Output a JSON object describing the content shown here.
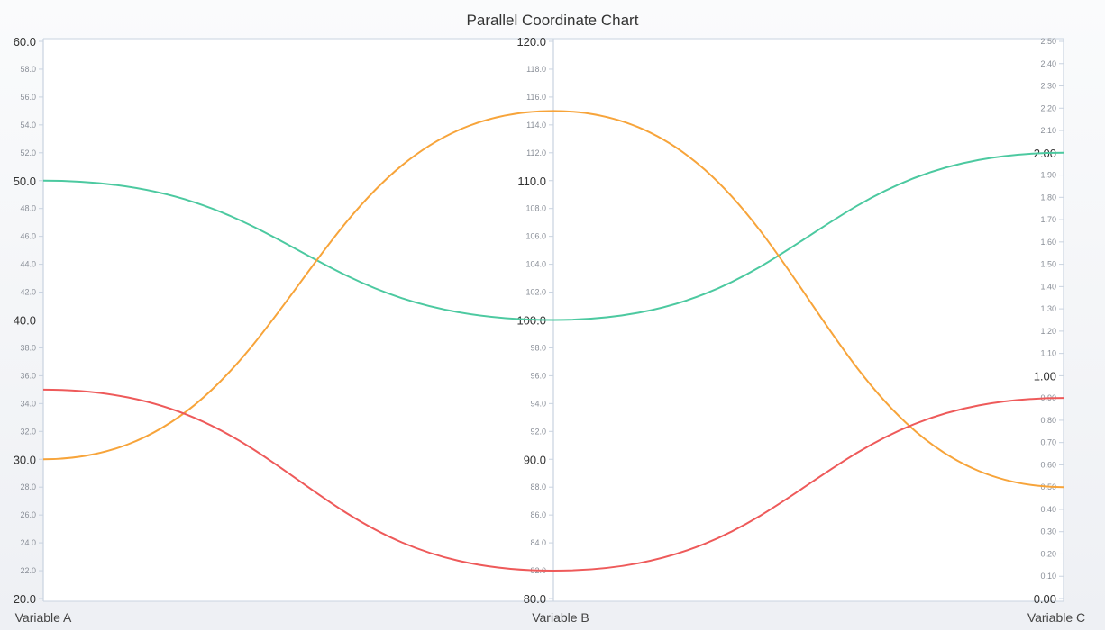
{
  "chart_data": {
    "type": "parallel-coordinates",
    "title": "Parallel Coordinate Chart",
    "axes": [
      {
        "name": "Variable A",
        "range": [
          20,
          60
        ],
        "tick_step": 2,
        "major_step": 10,
        "decimals": 1
      },
      {
        "name": "Variable B",
        "range": [
          80,
          120
        ],
        "tick_step": 2,
        "major_step": 10,
        "decimals": 1
      },
      {
        "name": "Variable C",
        "range": [
          0,
          2.5
        ],
        "tick_step": 0.1,
        "major_step": 1,
        "decimals": 2
      }
    ],
    "series": [
      {
        "values": [
          50,
          100,
          2.0
        ],
        "color": "#4cc9a0"
      },
      {
        "values": [
          30,
          115,
          0.5
        ],
        "color": "#f7a43a"
      },
      {
        "values": [
          35,
          82,
          0.9
        ],
        "color": "#ee5a5a"
      }
    ]
  },
  "colors": {
    "axis_line": "#c9d3e0",
    "plot_bg": "#ffffff"
  }
}
